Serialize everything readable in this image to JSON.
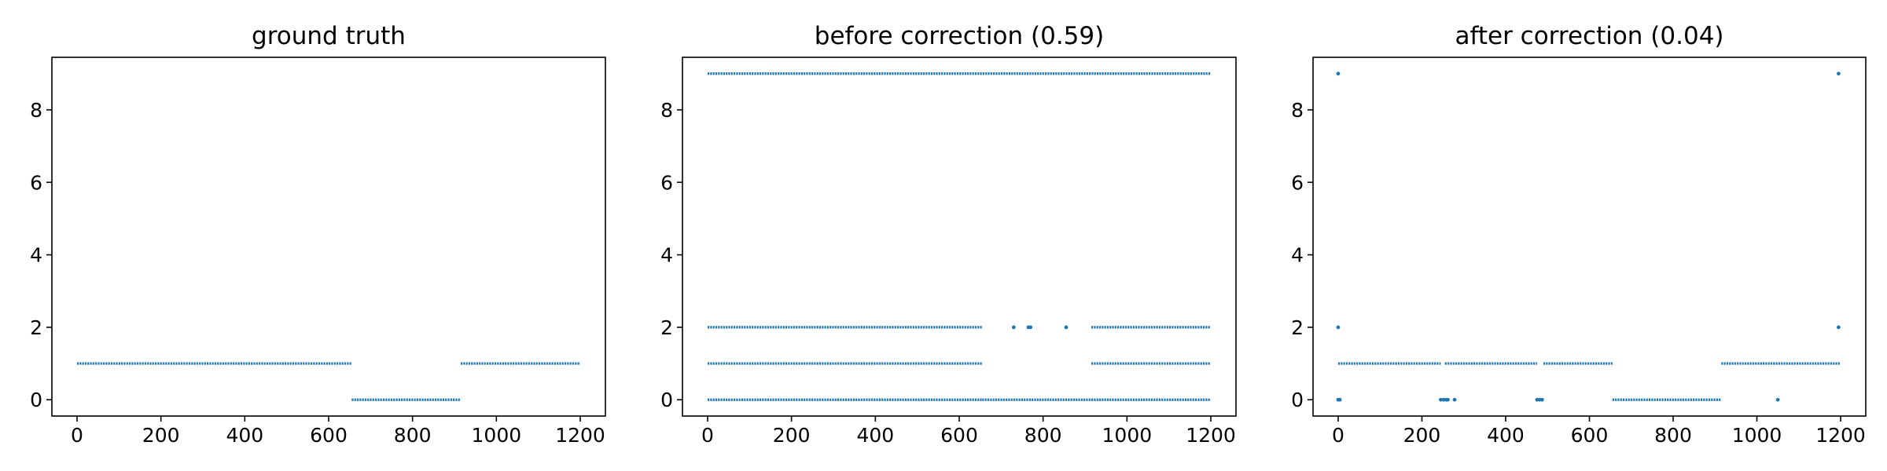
{
  "chart_data": [
    {
      "type": "scatter",
      "title": "ground truth",
      "xlabel": "",
      "ylabel": "",
      "xlim": [
        -60,
        1260
      ],
      "ylim": [
        -0.45,
        9.45
      ],
      "xticks": [
        0,
        200,
        400,
        600,
        800,
        1000,
        1200
      ],
      "yticks": [
        0,
        2,
        4,
        6,
        8
      ],
      "grid": false,
      "color": "#1f77b4",
      "segments": [
        {
          "y": 1,
          "x_start": 0,
          "x_end": 655
        },
        {
          "y": 0,
          "x_start": 655,
          "x_end": 915
        },
        {
          "y": 1,
          "x_start": 915,
          "x_end": 1200
        }
      ]
    },
    {
      "type": "scatter",
      "title": "before correction (0.59)",
      "xlabel": "",
      "ylabel": "",
      "xlim": [
        -60,
        1260
      ],
      "ylim": [
        -0.45,
        9.45
      ],
      "xticks": [
        0,
        200,
        400,
        600,
        800,
        1000,
        1200
      ],
      "yticks": [
        0,
        2,
        4,
        6,
        8
      ],
      "grid": false,
      "color": "#1f77b4",
      "segments": [
        {
          "y": 9,
          "x_start": 0,
          "x_end": 1200
        },
        {
          "y": 2,
          "x_start": 0,
          "x_end": 655
        },
        {
          "y": 2,
          "x_start": 915,
          "x_end": 1200
        },
        {
          "y": 1,
          "x_start": 0,
          "x_end": 655
        },
        {
          "y": 1,
          "x_start": 915,
          "x_end": 1200
        },
        {
          "y": 0,
          "x_start": 0,
          "x_end": 655
        },
        {
          "y": 0,
          "x_start": 655,
          "x_end": 915
        },
        {
          "y": 0,
          "x_start": 915,
          "x_end": 1200
        }
      ],
      "points": [
        {
          "x": 730,
          "y": 2
        },
        {
          "x": 765,
          "y": 2
        },
        {
          "x": 770,
          "y": 2
        },
        {
          "x": 855,
          "y": 2
        }
      ]
    },
    {
      "type": "scatter",
      "title": "after correction (0.04)",
      "xlabel": "",
      "ylabel": "",
      "xlim": [
        -60,
        1260
      ],
      "ylim": [
        -0.45,
        9.45
      ],
      "xticks": [
        0,
        200,
        400,
        600,
        800,
        1000,
        1200
      ],
      "yticks": [
        0,
        2,
        4,
        6,
        8
      ],
      "grid": false,
      "color": "#1f77b4",
      "segments": [
        {
          "y": 1,
          "x_start": 0,
          "x_end": 245
        },
        {
          "y": 1,
          "x_start": 255,
          "x_end": 475
        },
        {
          "y": 1,
          "x_start": 490,
          "x_end": 655
        },
        {
          "y": 0,
          "x_start": 655,
          "x_end": 915
        },
        {
          "y": 1,
          "x_start": 915,
          "x_end": 1200
        }
      ],
      "points": [
        {
          "x": 0,
          "y": 9
        },
        {
          "x": 0,
          "y": 2
        },
        {
          "x": 0,
          "y": 0
        },
        {
          "x": 4,
          "y": 0
        },
        {
          "x": 245,
          "y": 0
        },
        {
          "x": 252,
          "y": 0
        },
        {
          "x": 258,
          "y": 0
        },
        {
          "x": 262,
          "y": 0
        },
        {
          "x": 278,
          "y": 0
        },
        {
          "x": 475,
          "y": 0
        },
        {
          "x": 481,
          "y": 0
        },
        {
          "x": 487,
          "y": 0
        },
        {
          "x": 1050,
          "y": 0
        },
        {
          "x": 1195,
          "y": 9
        },
        {
          "x": 1195,
          "y": 2
        }
      ]
    }
  ]
}
